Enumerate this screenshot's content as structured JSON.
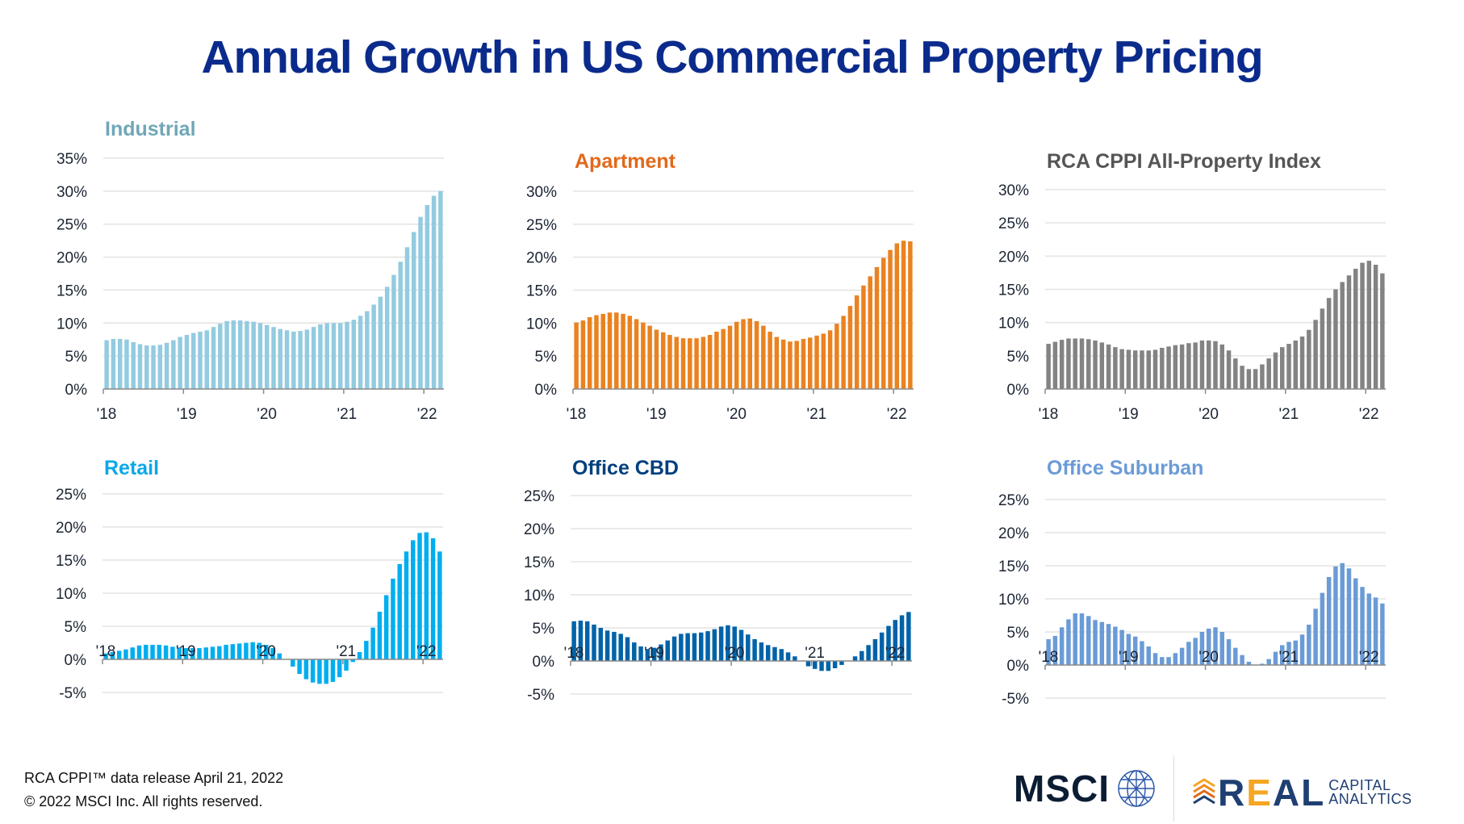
{
  "title": "Annual Growth in US Commercial Property Pricing",
  "footer": {
    "line1": "RCA CPPI™ data release April 21, 2022",
    "line2": "© 2022 MSCI Inc. All rights reserved."
  },
  "logos": {
    "msci": "MSCI",
    "rca_real": [
      "R",
      "E",
      "A",
      "L"
    ],
    "rca_capital": "CAPITAL",
    "rca_analytics": "ANALYTICS"
  },
  "chart_data": [
    {
      "type": "bar",
      "title": "Industrial",
      "title_color": "#6fa7b7",
      "bar_color": "#93cbe0",
      "x_ticks": [
        "'18",
        "'19",
        "'20",
        "'21",
        "'22"
      ],
      "ylim": [
        0,
        35
      ],
      "y_ticks": [
        0,
        5,
        10,
        15,
        20,
        25,
        30,
        35
      ],
      "y_tick_labels": [
        "0%",
        "5%",
        "10%",
        "15%",
        "20%",
        "25%",
        "30%",
        "35%"
      ],
      "grid": true,
      "values": [
        7.4,
        7.6,
        7.6,
        7.5,
        7.1,
        6.8,
        6.6,
        6.6,
        6.7,
        7.0,
        7.4,
        7.9,
        8.2,
        8.5,
        8.7,
        8.9,
        9.4,
        9.9,
        10.3,
        10.4,
        10.4,
        10.3,
        10.2,
        10.0,
        9.7,
        9.4,
        9.1,
        8.9,
        8.7,
        8.8,
        9.0,
        9.4,
        9.8,
        10.0,
        10.0,
        10.0,
        10.2,
        10.5,
        11.1,
        11.8,
        12.8,
        14.0,
        15.5,
        17.3,
        19.3,
        21.5,
        23.8,
        26.1,
        27.9,
        29.3,
        30.0
      ]
    },
    {
      "type": "bar",
      "title": "Apartment",
      "title_color": "#e2691a",
      "bar_color": "#ea8220",
      "x_ticks": [
        "'18",
        "'19",
        "'20",
        "'21",
        "'22"
      ],
      "ylim": [
        0,
        30
      ],
      "y_ticks": [
        0,
        5,
        10,
        15,
        20,
        25,
        30
      ],
      "y_tick_labels": [
        "0%",
        "5%",
        "10%",
        "15%",
        "20%",
        "25%",
        "30%"
      ],
      "grid": true,
      "values": [
        10.1,
        10.4,
        10.9,
        11.2,
        11.4,
        11.6,
        11.6,
        11.4,
        11.1,
        10.6,
        10.1,
        9.6,
        9.0,
        8.6,
        8.2,
        7.9,
        7.7,
        7.7,
        7.7,
        7.9,
        8.2,
        8.7,
        9.1,
        9.6,
        10.2,
        10.6,
        10.7,
        10.3,
        9.6,
        8.7,
        7.9,
        7.5,
        7.2,
        7.3,
        7.6,
        7.8,
        8.1,
        8.4,
        8.9,
        9.9,
        11.1,
        12.6,
        14.2,
        15.7,
        17.1,
        18.5,
        19.9,
        21.1,
        22.1,
        22.5,
        22.4
      ]
    },
    {
      "type": "bar",
      "title": "RCA CPPI All-Property Index",
      "title_color": "#555555",
      "bar_color": "#838383",
      "x_ticks": [
        "'18",
        "'19",
        "'20",
        "'21",
        "'22"
      ],
      "ylim": [
        0,
        30
      ],
      "y_ticks": [
        0,
        5,
        10,
        15,
        20,
        25,
        30
      ],
      "y_tick_labels": [
        "0%",
        "5%",
        "10%",
        "15%",
        "20%",
        "25%",
        "30%"
      ],
      "grid": true,
      "values": [
        6.8,
        7.1,
        7.4,
        7.6,
        7.6,
        7.6,
        7.5,
        7.3,
        7.0,
        6.7,
        6.3,
        6.0,
        5.9,
        5.8,
        5.8,
        5.8,
        5.9,
        6.2,
        6.4,
        6.6,
        6.7,
        6.9,
        7.0,
        7.3,
        7.3,
        7.2,
        6.7,
        5.8,
        4.6,
        3.5,
        3.0,
        3.0,
        3.7,
        4.6,
        5.5,
        6.3,
        6.8,
        7.3,
        7.9,
        8.9,
        10.4,
        12.1,
        13.7,
        15.0,
        16.1,
        17.1,
        18.1,
        19.0,
        19.3,
        18.7,
        17.4
      ]
    },
    {
      "type": "bar",
      "title": "Retail",
      "title_color": "#0aa8e8",
      "bar_color": "#00aeef",
      "x_ticks": [
        "'18",
        "'19",
        "'20",
        "'21",
        "'22"
      ],
      "ylim": [
        -5,
        25
      ],
      "y_ticks": [
        -5,
        0,
        5,
        10,
        15,
        20,
        25
      ],
      "y_tick_labels": [
        "-5%",
        "0%",
        "5%",
        "10%",
        "15%",
        "20%",
        "25%"
      ],
      "grid": true,
      "values": [
        0.9,
        1.1,
        1.3,
        1.5,
        1.8,
        2.1,
        2.2,
        2.2,
        2.2,
        2.1,
        1.9,
        1.8,
        1.7,
        1.7,
        1.7,
        1.8,
        1.9,
        2.0,
        2.2,
        2.3,
        2.4,
        2.5,
        2.6,
        2.5,
        2.2,
        1.7,
        0.9,
        0.0,
        -1.1,
        -2.2,
        -3.0,
        -3.5,
        -3.7,
        -3.7,
        -3.4,
        -2.7,
        -1.7,
        -0.4,
        1.1,
        2.8,
        4.8,
        7.2,
        9.7,
        12.2,
        14.4,
        16.3,
        18.0,
        19.1,
        19.2,
        18.3,
        16.3
      ]
    },
    {
      "type": "bar",
      "title": "Office CBD",
      "title_color": "#003f7e",
      "bar_color": "#0063a8",
      "x_ticks": [
        "'18",
        "'19",
        "'20",
        "'21",
        "'22"
      ],
      "ylim": [
        -5,
        25
      ],
      "y_ticks": [
        -5,
        0,
        5,
        10,
        15,
        20,
        25
      ],
      "y_tick_labels": [
        "-5%",
        "0%",
        "5%",
        "10%",
        "15%",
        "20%",
        "25%"
      ],
      "grid": true,
      "values": [
        6.0,
        6.1,
        6.0,
        5.5,
        5.0,
        4.6,
        4.4,
        4.1,
        3.6,
        2.8,
        2.2,
        1.8,
        2.0,
        2.5,
        3.1,
        3.7,
        4.1,
        4.2,
        4.2,
        4.3,
        4.5,
        4.8,
        5.2,
        5.4,
        5.2,
        4.7,
        4.0,
        3.3,
        2.8,
        2.4,
        2.1,
        1.8,
        1.3,
        0.7,
        0.0,
        -0.8,
        -1.2,
        -1.5,
        -1.5,
        -1.1,
        -0.6,
        0.0,
        0.7,
        1.5,
        2.4,
        3.3,
        4.3,
        5.3,
        6.2,
        6.9,
        7.4
      ]
    },
    {
      "type": "bar",
      "title": "Office Suburban",
      "title_color": "#6b9bd7",
      "bar_color": "#6a9bd6",
      "x_ticks": [
        "'18",
        "'19",
        "'20",
        "'21",
        "'22"
      ],
      "ylim": [
        -5,
        25
      ],
      "y_ticks": [
        -5,
        0,
        5,
        10,
        15,
        20,
        25
      ],
      "y_tick_labels": [
        "-5%",
        "0%",
        "5%",
        "10%",
        "15%",
        "20%",
        "25%"
      ],
      "grid": true,
      "values": [
        3.9,
        4.4,
        5.7,
        6.9,
        7.8,
        7.8,
        7.4,
        6.8,
        6.5,
        6.2,
        5.8,
        5.3,
        4.7,
        4.3,
        3.6,
        2.8,
        1.8,
        1.2,
        1.2,
        1.8,
        2.6,
        3.5,
        4.1,
        5.0,
        5.5,
        5.7,
        5.0,
        3.9,
        2.6,
        1.5,
        0.5,
        0.0,
        0.2,
        0.9,
        2.0,
        3.0,
        3.5,
        3.7,
        4.6,
        6.1,
        8.5,
        10.9,
        13.3,
        14.9,
        15.4,
        14.6,
        13.1,
        11.8,
        10.8,
        10.2,
        9.3
      ]
    }
  ]
}
